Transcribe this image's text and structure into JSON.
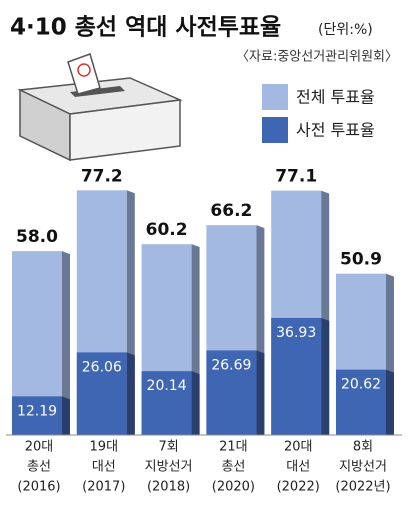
{
  "chart_data": {
    "type": "overlap-bar",
    "title": "4·10 총선 역대 사전투표율",
    "unit": "(단위:%)",
    "source": "〈자료:중앙선거관리위원회〉",
    "categories": [
      [
        "20대",
        "총선",
        "(2016)"
      ],
      [
        "19대",
        "대선",
        "(2017)"
      ],
      [
        "7회",
        "지방선거",
        "(2018)"
      ],
      [
        "21대",
        "총선",
        "(2020)"
      ],
      [
        "20대",
        "대선",
        "(2022)"
      ],
      [
        "8회",
        "지방선거",
        "(2022년)"
      ]
    ],
    "series": [
      {
        "name": "전체 투표율",
        "color": "#a4b9e2",
        "values": [
          58.0,
          77.2,
          60.2,
          66.2,
          77.1,
          50.9
        ],
        "value_labels": [
          "58.0",
          "77.2",
          "60.2",
          "66.2",
          "77.1",
          "50.9"
        ]
      },
      {
        "name": "사전 투표율",
        "color": "#3e66b3",
        "values": [
          12.19,
          26.06,
          20.14,
          26.69,
          36.93,
          20.62
        ]
      }
    ]
  }
}
